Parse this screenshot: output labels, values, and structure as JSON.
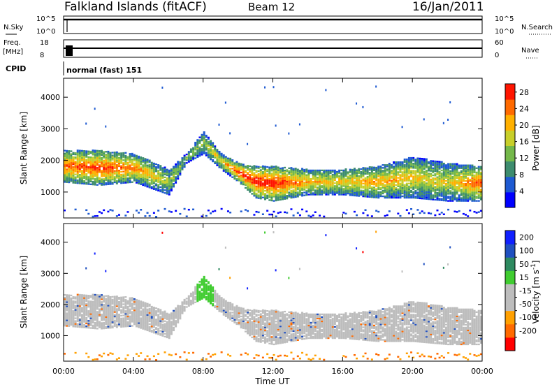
{
  "header": {
    "station": "Falkland Islands (fitACF)",
    "beam": "Beam 12",
    "date": "16/Jan/2011"
  },
  "panels": {
    "nsky": {
      "label": "N.Sky",
      "ticks": [
        "10^5",
        "10^0"
      ]
    },
    "nsearch": {
      "label": "N.Search",
      "ticks": [
        "10^5",
        "10^0"
      ]
    },
    "freq": {
      "label_top": "Freq.",
      "label_bottom": "[MHz]",
      "ticks": [
        "18",
        "8"
      ]
    },
    "nave": {
      "label": "Nave",
      "ticks": [
        "60",
        "0"
      ]
    },
    "cpid": {
      "label": "CPID",
      "value": "normal (fast) 151"
    }
  },
  "colors": {
    "power_scale": [
      "#0000ff",
      "#1e5ad2",
      "#3d8c6e",
      "#74b84a",
      "#c8cf2a",
      "#ffb000",
      "#ff6a00",
      "#ff1500"
    ],
    "velocity_scale": [
      "#ff0000",
      "#ff6a00",
      "#ffa000",
      "#bdbdbd",
      "#bdbdbd",
      "#40cc30",
      "#2e8a60",
      "#2050c0",
      "#1020ff"
    ],
    "ground_scatter": "#bdbdbd"
  },
  "chart_data": [
    {
      "type": "heatmap",
      "title": "Power",
      "xlabel": "Time UT",
      "ylabel": "Slant Range [km]",
      "x_ticks": [
        "00:00",
        "04:00",
        "08:00",
        "12:00",
        "16:00",
        "20:00",
        "00:00"
      ],
      "x_range_hours": [
        0,
        24
      ],
      "y_ticks": [
        1000,
        2000,
        3000,
        4000
      ],
      "ylim": [
        180,
        4600
      ],
      "colorbar_label": "Power [dB]",
      "colorbar_ticks": [
        4,
        8,
        12,
        16,
        20,
        24,
        28
      ],
      "colorbar_range": [
        0,
        30
      ],
      "scatter_band": {
        "hours": [
          0,
          2,
          4,
          6,
          7,
          8,
          9,
          10,
          11,
          12,
          14,
          16,
          18,
          20,
          22,
          24
        ],
        "lower_km": [
          1300,
          1200,
          1300,
          900,
          1900,
          2200,
          1700,
          1300,
          800,
          700,
          900,
          900,
          800,
          800,
          700,
          700
        ],
        "upper_km": [
          2300,
          2300,
          2200,
          1700,
          2200,
          2900,
          2200,
          1900,
          1800,
          1800,
          1700,
          1700,
          1800,
          2100,
          1900,
          1800
        ],
        "peak_power_db": [
          26,
          28,
          24,
          16,
          14,
          16,
          20,
          28,
          30,
          30,
          22,
          20,
          22,
          20,
          18,
          28
        ]
      }
    },
    {
      "type": "heatmap",
      "title": "Velocity",
      "xlabel": "Time UT",
      "ylabel": "Slant Range [km]",
      "x_ticks": [
        "00:00",
        "04:00",
        "08:00",
        "12:00",
        "16:00",
        "20:00",
        "00:00"
      ],
      "x_range_hours": [
        0,
        24
      ],
      "y_ticks": [
        1000,
        2000,
        3000,
        4000
      ],
      "ylim": [
        180,
        4600
      ],
      "colorbar_label": "Velocity [m s^-1]",
      "colorbar_ticks": [
        200,
        100,
        50,
        15,
        -15,
        -50,
        -100,
        -200
      ],
      "colorbar_range": [
        -250,
        250
      ],
      "dominant_value": "ground scatter (grey)"
    }
  ]
}
